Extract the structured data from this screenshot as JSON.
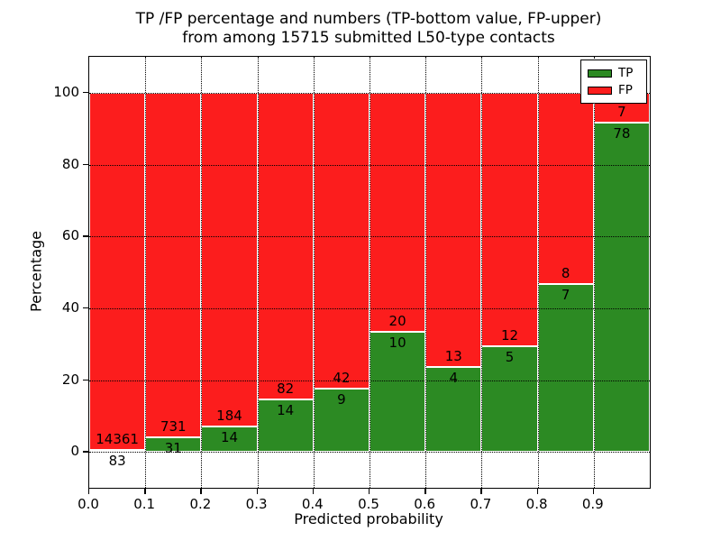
{
  "chart_data": {
    "type": "bar",
    "stacked": true,
    "title_line1": "TP /FP percentage and numbers (TP-bottom value, FP-upper)",
    "title_line2": "from among 15715 submitted L50-type contacts",
    "xlabel": "Predicted probability",
    "ylabel": "Percentage",
    "xlim": [
      0.0,
      1.0
    ],
    "ylim": [
      -10,
      110
    ],
    "bin_width": 0.1,
    "xticks": [
      0.0,
      0.1,
      0.2,
      0.3,
      0.4,
      0.5,
      0.6,
      0.7,
      0.8,
      0.9
    ],
    "xtick_labels": [
      "0.0",
      "0.1",
      "0.2",
      "0.3",
      "0.4",
      "0.5",
      "0.6",
      "0.7",
      "0.8",
      "0.9"
    ],
    "yticks": [
      0,
      20,
      40,
      60,
      80,
      100
    ],
    "ytick_labels": [
      "0",
      "20",
      "40",
      "60",
      "80",
      "100"
    ],
    "grid": true,
    "legend_position": "upper right",
    "legend": [
      {
        "label": "TP",
        "color": "#2c8a23"
      },
      {
        "label": "FP",
        "color": "#fc1d1d"
      }
    ],
    "bins": [
      {
        "x0": 0.0,
        "tp": 83,
        "fp": 14361
      },
      {
        "x0": 0.1,
        "tp": 31,
        "fp": 731
      },
      {
        "x0": 0.2,
        "tp": 14,
        "fp": 184
      },
      {
        "x0": 0.3,
        "tp": 14,
        "fp": 82
      },
      {
        "x0": 0.4,
        "tp": 9,
        "fp": 42
      },
      {
        "x0": 0.5,
        "tp": 10,
        "fp": 20
      },
      {
        "x0": 0.6,
        "tp": 4,
        "fp": 13
      },
      {
        "x0": 0.7,
        "tp": 5,
        "fp": 12
      },
      {
        "x0": 0.8,
        "tp": 7,
        "fp": 8
      },
      {
        "x0": 0.9,
        "tp": 78,
        "fp": 7
      }
    ],
    "colors": {
      "tp": "#2c8a23",
      "fp": "#fc1d1d",
      "bar_edge": "#ffffff",
      "grid": "#000000",
      "frame": "#000000",
      "background": "#ffffff",
      "text": "#000000"
    }
  }
}
